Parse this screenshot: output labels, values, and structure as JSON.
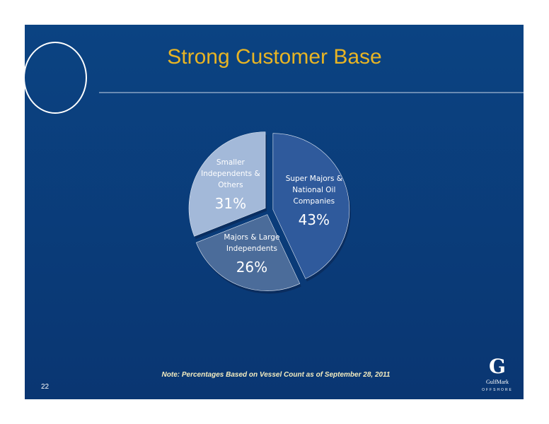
{
  "chart_data": {
    "type": "pie",
    "title": "Strong Customer Base",
    "categories": [
      "Super Majors & National Oil Companies",
      "Majors & Large Independents",
      "Smaller Independents & Others"
    ],
    "values": [
      43,
      26,
      31
    ],
    "value_labels": [
      "43%",
      "26%",
      "31%"
    ],
    "colors": [
      "#2f5a9c",
      "#4b6c9a",
      "#a3b9d9"
    ],
    "note": "Note: Percentages Based on Vessel Count as of September 28, 2011"
  },
  "page_number": "22",
  "logo": {
    "mark": "G",
    "name": "GulfMark",
    "tagline": "OFFSHORE"
  }
}
